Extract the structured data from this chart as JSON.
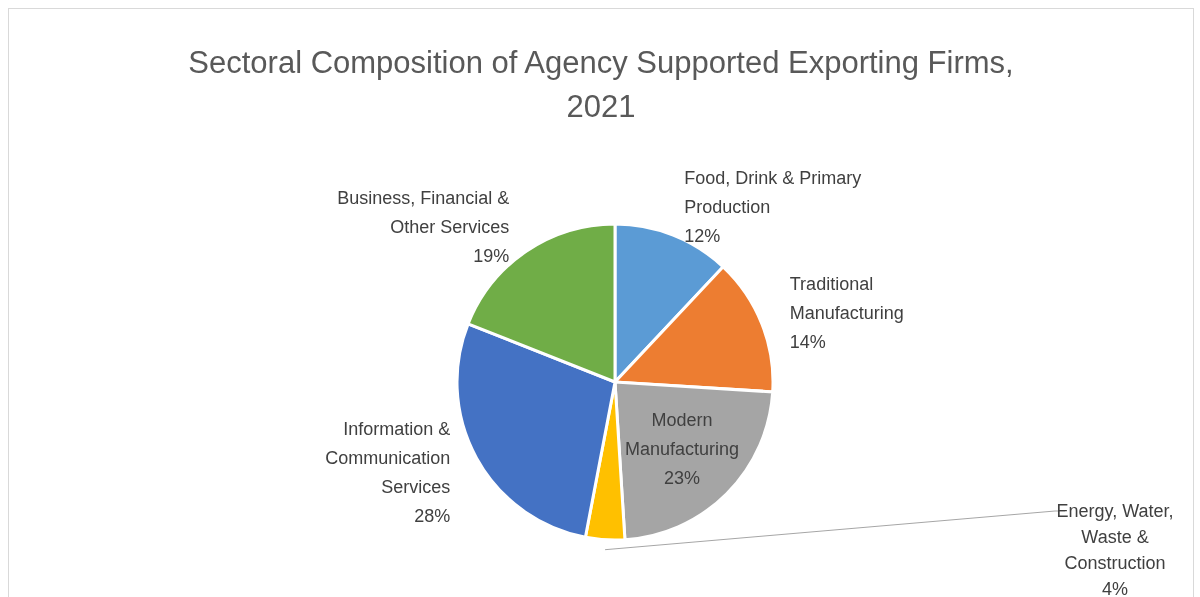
{
  "chart_data": {
    "type": "pie",
    "title": "Sectoral Composition of Agency Supported Exporting Firms, 2021",
    "categories": [
      "Food, Drink & Primary Production",
      "Traditional Manufacturing",
      "Modern Manufacturing",
      "Energy, Water, Waste & Construction",
      "Information & Communication Services",
      "Business, Financial & Other Services"
    ],
    "values": [
      12,
      14,
      23,
      4,
      28,
      19
    ],
    "value_labels": [
      "12%",
      "14%",
      "23%",
      "4%",
      "28%",
      "19%"
    ],
    "colors": [
      "#5b9bd5",
      "#ed7d31",
      "#a5a5a5",
      "#ffc000",
      "#4472c4",
      "#70ad47"
    ]
  }
}
